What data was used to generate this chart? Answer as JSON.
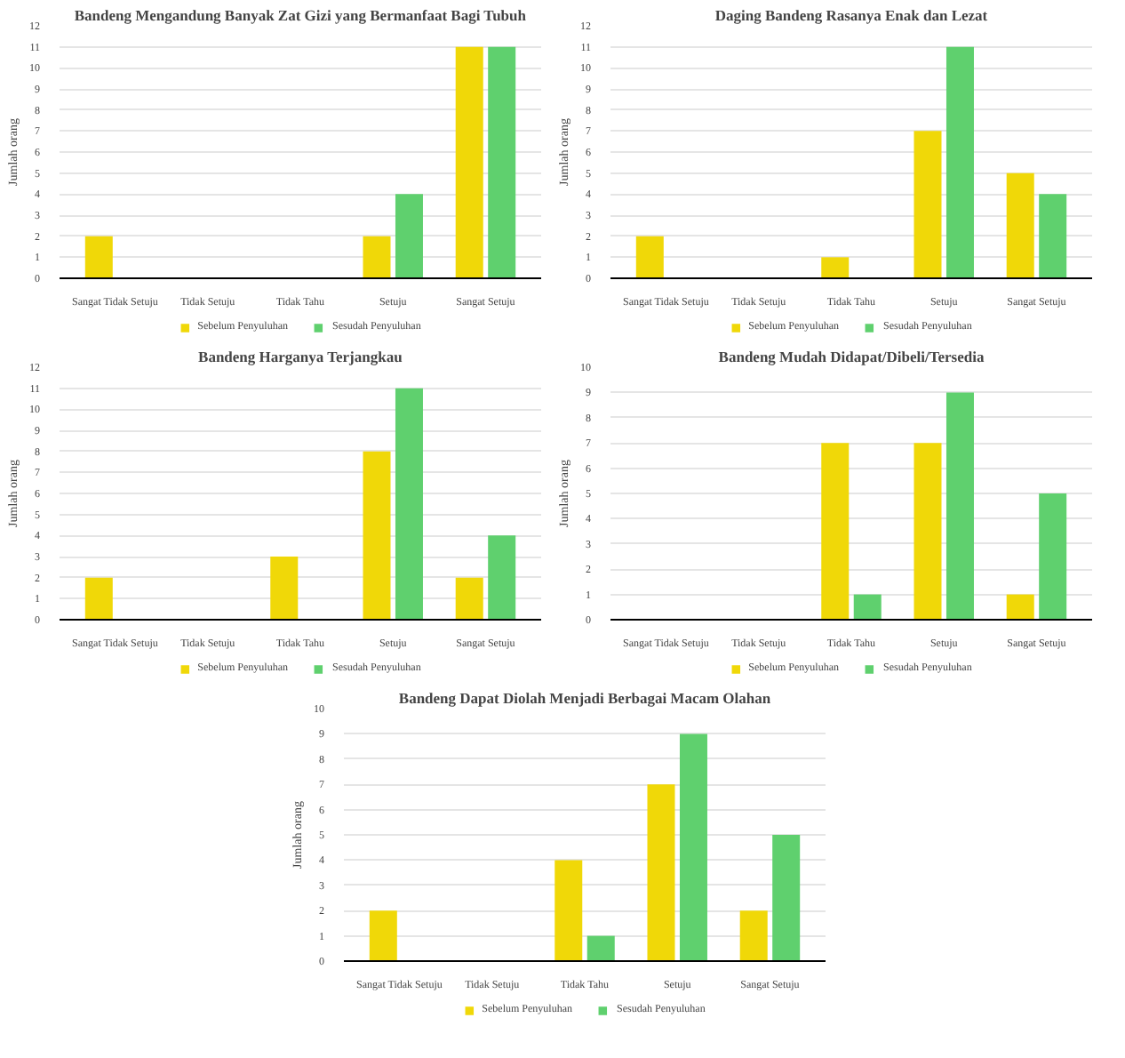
{
  "chart_data": [
    {
      "type": "bar",
      "title": "Bandeng Mengandung Banyak Zat Gizi yang Bermanfaat Bagi Tubuh",
      "ylabel": "Jumlah orang",
      "categories": [
        "Sangat Tidak Setuju",
        "Tidak Setuju",
        "Tidak Tahu",
        "Setuju",
        "Sangat Setuju"
      ],
      "series": [
        {
          "name": "Sebelum Penyuluhan",
          "color": "#f0d808",
          "values": [
            2,
            0,
            0,
            2,
            11
          ]
        },
        {
          "name": "Sesudah Penyuluhan",
          "color": "#5fd06e",
          "values": [
            0,
            0,
            0,
            4,
            11
          ]
        }
      ],
      "ylim": [
        0,
        12
      ],
      "yticks": [
        0,
        1,
        2,
        3,
        4,
        5,
        6,
        7,
        8,
        9,
        10,
        11,
        12
      ],
      "grid": "y",
      "legend": "bottom"
    },
    {
      "type": "bar",
      "title": "Daging Bandeng Rasanya Enak dan Lezat",
      "ylabel": "Jumlah orang",
      "categories": [
        "Sangat Tidak Setuju",
        "Tidak Setuju",
        "Tidak Tahu",
        "Setuju",
        "Sangat Setuju"
      ],
      "series": [
        {
          "name": "Sebelum Penyuluhan",
          "color": "#f0d808",
          "values": [
            2,
            0,
            1,
            7,
            5
          ]
        },
        {
          "name": "Sesudah Penyuluhan",
          "color": "#5fd06e",
          "values": [
            0,
            0,
            0,
            11,
            4
          ]
        }
      ],
      "ylim": [
        0,
        12
      ],
      "yticks": [
        0,
        1,
        2,
        3,
        4,
        5,
        6,
        7,
        8,
        9,
        10,
        11,
        12
      ],
      "grid": "y",
      "legend": "bottom"
    },
    {
      "type": "bar",
      "title": "Bandeng Harganya Terjangkau",
      "ylabel": "Jumlah orang",
      "categories": [
        "Sangat Tidak Setuju",
        "Tidak Setuju",
        "Tidak Tahu",
        "Setuju",
        "Sangat Setuju"
      ],
      "series": [
        {
          "name": "Sebelum Penyuluhan",
          "color": "#f0d808",
          "values": [
            2,
            0,
            3,
            8,
            2
          ]
        },
        {
          "name": "Sesudah Penyuluhan",
          "color": "#5fd06e",
          "values": [
            0,
            0,
            0,
            11,
            4
          ]
        }
      ],
      "ylim": [
        0,
        12
      ],
      "yticks": [
        0,
        1,
        2,
        3,
        4,
        5,
        6,
        7,
        8,
        9,
        10,
        11,
        12
      ],
      "grid": "y",
      "legend": "bottom"
    },
    {
      "type": "bar",
      "title": "Bandeng Mudah Didapat/Dibeli/Tersedia",
      "ylabel": "Jumlah orang",
      "categories": [
        "Sangat Tidak Setuju",
        "Tidak Setuju",
        "Tidak Tahu",
        "Setuju",
        "Sangat Setuju"
      ],
      "series": [
        {
          "name": "Sebelum Penyuluhan",
          "color": "#f0d808",
          "values": [
            0,
            0,
            7,
            7,
            1
          ]
        },
        {
          "name": "Sesudah Penyuluhan",
          "color": "#5fd06e",
          "values": [
            0,
            0,
            1,
            9,
            5
          ]
        }
      ],
      "ylim": [
        0,
        10
      ],
      "yticks": [
        0,
        1,
        2,
        3,
        4,
        5,
        6,
        7,
        8,
        9,
        10
      ],
      "grid": "y",
      "legend": "bottom"
    },
    {
      "type": "bar",
      "title": "Bandeng Dapat Diolah Menjadi Berbagai Macam Olahan",
      "ylabel": "Jumlah orang",
      "categories": [
        "Sangat Tidak Setuju",
        "Tidak Setuju",
        "Tidak Tahu",
        "Setuju",
        "Sangat Setuju"
      ],
      "series": [
        {
          "name": "Sebelum Penyuluhan",
          "color": "#f0d808",
          "values": [
            2,
            0,
            4,
            7,
            2
          ]
        },
        {
          "name": "Sesudah Penyuluhan",
          "color": "#5fd06e",
          "values": [
            0,
            0,
            1,
            9,
            5
          ]
        }
      ],
      "ylim": [
        0,
        10
      ],
      "yticks": [
        0,
        1,
        2,
        3,
        4,
        5,
        6,
        7,
        8,
        9,
        10
      ],
      "grid": "y",
      "legend": "bottom"
    }
  ]
}
